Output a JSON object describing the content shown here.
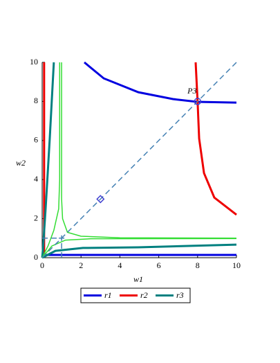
{
  "chart_data": {
    "type": "line",
    "xlabel": "w1",
    "ylabel": "w2",
    "xlim": [
      0,
      10
    ],
    "ylim": [
      0,
      10
    ],
    "xticks": [
      0,
      2,
      4,
      6,
      8,
      10
    ],
    "yticks": [
      0,
      2,
      4,
      6,
      8,
      10
    ],
    "legend": "bottom",
    "series": [
      {
        "name": "r1",
        "color": "#0000e0",
        "width": 3,
        "x": [
          2.17,
          3.17,
          4.95,
          6.73,
          7.97,
          10,
          null,
          0,
          10
        ],
        "values": [
          10,
          9.18,
          8.47,
          8.12,
          7.98,
          7.94,
          null,
          0.14,
          0.14
        ]
      },
      {
        "name": "r2",
        "color": "#ee0000",
        "width": 3,
        "x": [
          0.1,
          0.1,
          null,
          7.9,
          8,
          8.08,
          8.33,
          8.86,
          10
        ],
        "values": [
          0,
          10,
          null,
          10,
          8,
          6.1,
          4.33,
          3.08,
          2.2
        ]
      },
      {
        "name": "r3",
        "color": "#008080",
        "width": 3,
        "x": [
          0.6,
          0.39,
          0.18,
          0.04,
          0,
          null,
          0,
          0.68,
          2.1,
          4.95,
          10
        ],
        "values": [
          10,
          6.1,
          2.55,
          0.43,
          0,
          null,
          0,
          0.35,
          0.5,
          0.53,
          0.67
        ]
      },
      {
        "color": "#33dd33",
        "width": 1.5,
        "x": [
          1,
          1,
          1,
          1.05,
          1.3,
          2,
          4,
          10,
          null,
          0.9,
          0.9,
          0.85,
          0.6,
          0.3,
          0,
          null,
          0,
          0.5,
          1.2,
          2.5,
          10
        ],
        "values": [
          10,
          5,
          3,
          2,
          1.3,
          1.1,
          1.02,
          1,
          null,
          10,
          4,
          2.5,
          1.4,
          0.6,
          0,
          null,
          0,
          0.6,
          0.9,
          0.97,
          0.98
        ]
      },
      {
        "color": "#4682b4",
        "width": 1.5,
        "dash": true,
        "x": [
          0,
          10,
          null,
          0,
          1,
          null,
          1,
          1
        ],
        "values": [
          0,
          10,
          null,
          1,
          1,
          null,
          0,
          1
        ]
      }
    ],
    "points": [
      {
        "x": 8,
        "y": 8,
        "marker": "circle",
        "color": "#4040d0",
        "label": "P3"
      },
      {
        "x": 3,
        "y": 3,
        "marker": "diamond",
        "color": "#4040d0"
      },
      {
        "x": 1,
        "y": 1,
        "marker": "plus",
        "color": "#4682b4"
      }
    ]
  }
}
